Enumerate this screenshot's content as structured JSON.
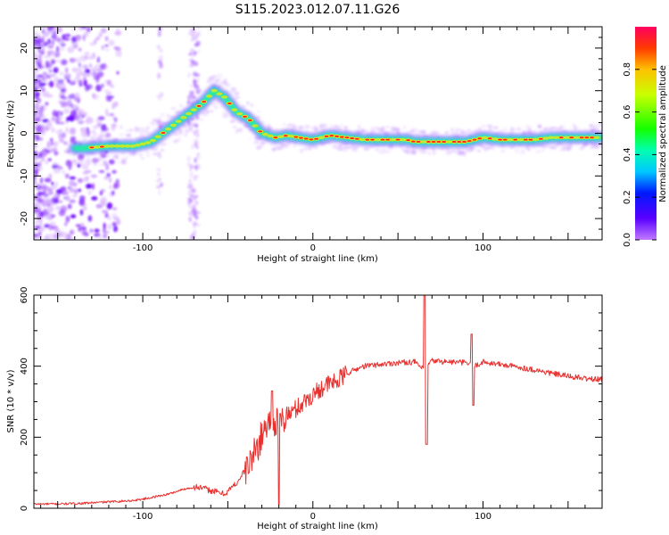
{
  "title": "S115.2023.012.07.11.G26",
  "colors": {
    "axis": "#000000",
    "snr_line": "#e8312f",
    "ridge": "#ff1f2e"
  },
  "chart_data": [
    {
      "type": "heatmap",
      "name": "spectrogram",
      "xlabel": "Height of straight line (km)",
      "ylabel": "Frequency (Hz)",
      "xlim": [
        -164,
        170
      ],
      "ylim": [
        -25,
        25
      ],
      "x_ticks": [
        -100,
        0,
        100
      ],
      "y_ticks": [
        -20,
        -10,
        0,
        10,
        20
      ],
      "colorbar": {
        "label": "Normalized spectral amplitude",
        "ticks": [
          0.0,
          0.2,
          0.4,
          0.6,
          0.8
        ],
        "range": [
          0,
          1
        ],
        "colormap": "gist_rainbow_r"
      },
      "ridge": {
        "x": [
          -135,
          -120,
          -105,
          -95,
          -85,
          -75,
          -65,
          -58,
          -52,
          -45,
          -38,
          -30,
          -22,
          -15,
          -8,
          0,
          10,
          20,
          30,
          40,
          50,
          55,
          60,
          70,
          80,
          90,
          100,
          110,
          120,
          130,
          140,
          150,
          160,
          170
        ],
        "y": [
          -3.5,
          -3,
          -3,
          -2,
          1,
          4,
          7,
          10,
          8.5,
          5,
          3.5,
          0,
          -1,
          -0.5,
          -1,
          -1.5,
          -0.5,
          -1,
          -1.5,
          -1.5,
          -1.5,
          -1.5,
          -2,
          -2,
          -2,
          -2,
          -1,
          -1.5,
          -1.5,
          -1.5,
          -1,
          -1,
          -1,
          -1
        ]
      }
    },
    {
      "type": "line",
      "name": "snr",
      "xlabel": "Height of straight line (km)",
      "ylabel": "SNR (10 * v/v)",
      "xlim": [
        -164,
        170
      ],
      "ylim": [
        0,
        600
      ],
      "x_ticks": [
        -100,
        0,
        100
      ],
      "y_ticks": [
        0,
        200,
        400,
        600
      ],
      "x": [
        -164,
        -150,
        -135,
        -120,
        -105,
        -95,
        -85,
        -75,
        -68,
        -60,
        -52,
        -45,
        -38,
        -32,
        -28,
        -24,
        -20,
        -15,
        -10,
        -5,
        0,
        5,
        10,
        15,
        20,
        25,
        30,
        40,
        50,
        60,
        65,
        70,
        80,
        90,
        95,
        100,
        110,
        120,
        130,
        140,
        150,
        160,
        170
      ],
      "values": [
        12,
        12,
        14,
        18,
        22,
        30,
        40,
        55,
        60,
        50,
        40,
        70,
        120,
        180,
        230,
        250,
        240,
        260,
        280,
        300,
        320,
        340,
        350,
        360,
        380,
        390,
        400,
        405,
        410,
        412,
        390,
        415,
        412,
        410,
        400,
        412,
        405,
        398,
        390,
        380,
        372,
        365,
        362
      ]
    }
  ]
}
